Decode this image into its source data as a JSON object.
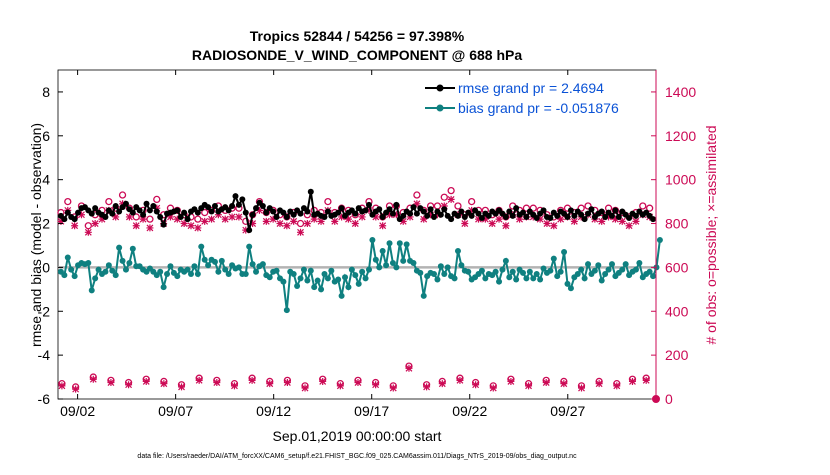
{
  "chart_data": {
    "type": "line",
    "title_lines": [
      "Tropics 52844 / 54256 = 97.398%",
      "RADIOSONDE_V_WIND_COMPONENT @ 688 hPa"
    ],
    "xlabel": "Sep.01,2019 00:00:00 start",
    "ylabel_left": "rmse and bias (model - observation)",
    "ylabel_right": "# of obs: o=possible; ×=assimilated",
    "footnote": "data file: /Users/raeder/DAI/ATM_forcXX/CAM6_setup/f.e21.FHIST_BGC.f09_025.CAM6assim.011/Diags_NTrS_2019-09/obs_diag_output.nc",
    "xlim": [
      1,
      31.5
    ],
    "ylim_left": [
      -6,
      9
    ],
    "ylim_right": [
      0,
      1500
    ],
    "x_ticks": [
      2,
      7,
      12,
      17,
      22,
      27
    ],
    "x_tick_labels": [
      "09/02",
      "09/07",
      "09/12",
      "09/17",
      "09/22",
      "09/27"
    ],
    "y_left_ticks": [
      -6,
      -4,
      -2,
      0,
      2,
      4,
      6,
      8
    ],
    "y_right_ticks": [
      0,
      200,
      400,
      600,
      800,
      1000,
      1200,
      1400
    ],
    "colors": {
      "rmse": "#000000",
      "bias": "#0f8080",
      "obs": "#cc0a55",
      "zero_line": "#b3b3b3",
      "legend_text": "#0a52d6",
      "right_axis": "#cc0a55"
    },
    "legend": [
      {
        "key": "rmse",
        "label": "rmse grand pr = 2.4694"
      },
      {
        "key": "bias",
        "label": "bias grand pr = -0.051876"
      }
    ],
    "series": [
      {
        "name": "rmse",
        "values": [
          2.35,
          2.2,
          2.5,
          2.3,
          2.2,
          2.5,
          2.7,
          2.75,
          2.6,
          2.45,
          2.7,
          2.5,
          2.4,
          2.3,
          2.6,
          2.45,
          2.8,
          2.55,
          2.75,
          2.9,
          2.65,
          2.5,
          2.75,
          2.6,
          2.4,
          2.9,
          2.6,
          2.8,
          2.55,
          2.3,
          1.95,
          2.45,
          2.5,
          2.55,
          2.6,
          2.3,
          2.5,
          2.2,
          2.55,
          2.65,
          2.5,
          2.7,
          2.85,
          2.75,
          2.55,
          2.8,
          2.55,
          2.65,
          2.75,
          2.6,
          2.8,
          3.25,
          2.85,
          3.1,
          2.5,
          1.7,
          2.4,
          2.7,
          2.95,
          2.8,
          2.5,
          2.7,
          2.55,
          2.3,
          2.6,
          2.5,
          2.3,
          2.55,
          2.4,
          2.6,
          2.45,
          2.7,
          2.55,
          3.45,
          2.4,
          2.45,
          2.35,
          2.3,
          2.55,
          2.35,
          2.4,
          2.5,
          2.7,
          2.35,
          2.5,
          2.6,
          2.45,
          2.7,
          2.55,
          2.6,
          2.85,
          2.4,
          2.55,
          2.65,
          2.3,
          2.5,
          2.65,
          2.45,
          2.85,
          2.2,
          2.35,
          2.55,
          2.45,
          2.75,
          2.45,
          2.7,
          2.55,
          2.35,
          2.65,
          2.3,
          2.55,
          2.4,
          2.65,
          2.35,
          2.2,
          2.45,
          2.35,
          2.55,
          2.3,
          2.5,
          2.35,
          2.6,
          2.45,
          2.25,
          2.45,
          2.35,
          2.55,
          2.45,
          2.6,
          2.45,
          2.3,
          2.55,
          2.35,
          2.7,
          2.4,
          2.5,
          2.3,
          2.55,
          2.4,
          2.25,
          2.45,
          2.6,
          2.3,
          2.25,
          2.5,
          2.35,
          2.55,
          2.45,
          2.3,
          2.6,
          2.35,
          2.55,
          2.4,
          2.2,
          2.45,
          2.65,
          2.3,
          2.45,
          2.55,
          2.3,
          2.5,
          2.35,
          2.6,
          2.3,
          2.55,
          2.4,
          2.25,
          2.45,
          2.35,
          2.55,
          2.4,
          2.5,
          2.35,
          2.2
        ]
      },
      {
        "name": "bias",
        "values": [
          -0.2,
          -0.35,
          0.45,
          -0.1,
          -0.4,
          0.1,
          0.2,
          0.15,
          0.2,
          -1.05,
          -0.5,
          -0.1,
          -0.3,
          -0.2,
          0.1,
          -0.15,
          -0.35,
          0.9,
          0.3,
          -0.1,
          0.2,
          0.85,
          0.05,
          0.05,
          -0.1,
          -0.2,
          -0.05,
          -0.2,
          -0.35,
          -0.2,
          -0.9,
          -0.3,
          0.05,
          -0.25,
          -0.4,
          -0.1,
          -0.2,
          -0.1,
          -0.3,
          0.05,
          -0.3,
          0.95,
          0.35,
          0.1,
          0.35,
          0.25,
          -0.2,
          0.3,
          -0.1,
          -0.3,
          0.1,
          -0.05,
          0.0,
          -0.3,
          -0.3,
          0.95,
          0.15,
          -0.2,
          0.05,
          0.15,
          -0.35,
          -0.45,
          -0.2,
          -0.15,
          -0.5,
          -0.65,
          -1.95,
          -0.2,
          -0.3,
          -0.85,
          -0.5,
          -0.1,
          -0.6,
          -0.15,
          -0.9,
          -0.6,
          -1.0,
          -0.3,
          -0.5,
          -0.15,
          -0.65,
          -0.55,
          -1.3,
          -0.45,
          -0.9,
          -0.1,
          -0.35,
          -0.75,
          -0.2,
          -0.5,
          -0.1,
          1.25,
          0.35,
          0.0,
          0.75,
          0.1,
          1.1,
          0.2,
          0.0,
          1.1,
          0.3,
          1.05,
          0.3,
          0.2,
          -0.15,
          -0.25,
          -1.3,
          -0.4,
          -0.25,
          -0.3,
          -0.55,
          0.05,
          -0.3,
          0.0,
          -0.4,
          -0.5,
          0.75,
          0.1,
          -0.15,
          -0.2,
          -0.55,
          -0.45,
          -0.3,
          -0.15,
          -0.5,
          -0.3,
          -0.35,
          -0.2,
          -0.65,
          -0.1,
          0.3,
          -0.45,
          -0.2,
          -0.55,
          -0.1,
          -0.25,
          -0.5,
          -0.2,
          -0.5,
          -0.3,
          -0.55,
          -0.05,
          -0.25,
          -0.15,
          0.4,
          -0.4,
          -0.2,
          0.7,
          -0.75,
          -0.95,
          -0.45,
          -0.3,
          -0.1,
          -0.5,
          0.15,
          -0.3,
          -0.15,
          0.1,
          -0.6,
          -0.3,
          -0.1,
          0.15,
          -0.4,
          -0.25,
          -0.1,
          0.15,
          -0.35,
          -0.2,
          -0.1,
          0.2,
          -0.45,
          -0.3,
          -0.2,
          -0.4,
          0.0,
          1.25
        ]
      },
      {
        "name": "obs_possible",
        "values": [
          850,
          820,
          900,
          810,
          830,
          840,
          880,
          870,
          790,
          800,
          840,
          920,
          860,
          830,
          900,
          880,
          870,
          920,
          930,
          890,
          870,
          950,
          830,
          880,
          860,
          840,
          820,
          890,
          910,
          860,
          840,
          830,
          870,
          860,
          860,
          800,
          840,
          820,
          830,
          860,
          820,
          830,
          850,
          840,
          860,
          930,
          880,
          880,
          860,
          840,
          870,
          950,
          870,
          880,
          810,
          830,
          840,
          860,
          900,
          890,
          850,
          840,
          860,
          820,
          840,
          820,
          830,
          860,
          850,
          840,
          800,
          830,
          840,
          860,
          860,
          820,
          850,
          860,
          900,
          860,
          850,
          840,
          870,
          820,
          860,
          830,
          840,
          890,
          870,
          880,
          900,
          860,
          870,
          860,
          830,
          840,
          880,
          860,
          880,
          880,
          850,
          930,
          870,
          920,
          930,
          880,
          860,
          920,
          880,
          860,
          880,
          850,
          920,
          880,
          950,
          870,
          880,
          860,
          840,
          850,
          900,
          880,
          860,
          880,
          860,
          850,
          840,
          890,
          860,
          840,
          830,
          860,
          880,
          870,
          860,
          830,
          870,
          860,
          870,
          880,
          860,
          820,
          840,
          880,
          830,
          840,
          860,
          880,
          870,
          890,
          850,
          830,
          870,
          860,
          880,
          900,
          860,
          880,
          850,
          830,
          870,
          880,
          860,
          870,
          850,
          860,
          830,
          870,
          850,
          840,
          880,
          850,
          870
        ]
      },
      {
        "name": "obs_assimilated",
        "values": [
          810,
          780,
          860,
          790,
          790,
          800,
          840,
          830,
          760,
          770,
          800,
          880,
          820,
          790,
          860,
          840,
          830,
          880,
          890,
          850,
          830,
          910,
          790,
          840,
          820,
          800,
          780,
          850,
          870,
          820,
          800,
          790,
          830,
          820,
          820,
          760,
          800,
          780,
          790,
          820,
          780,
          790,
          810,
          800,
          820,
          890,
          840,
          840,
          820,
          800,
          830,
          910,
          830,
          840,
          770,
          790,
          800,
          820,
          860,
          850,
          810,
          800,
          820,
          780,
          800,
          780,
          790,
          820,
          810,
          800,
          760,
          790,
          800,
          820,
          820,
          780,
          810,
          820,
          860,
          820,
          810,
          800,
          830,
          780,
          820,
          790,
          800,
          850,
          830,
          840,
          860,
          820,
          830,
          820,
          790,
          800,
          840,
          820,
          840,
          840,
          810,
          890,
          830,
          880,
          890,
          840,
          820,
          880,
          840,
          820,
          840,
          810,
          880,
          840,
          910,
          830,
          840,
          820,
          800,
          810,
          860,
          840,
          820,
          840,
          820,
          810,
          800,
          850,
          820,
          800,
          790,
          820,
          840,
          830,
          820,
          790,
          830,
          820,
          830,
          840,
          820,
          780,
          800,
          840,
          790,
          800,
          820,
          840,
          830,
          850,
          810,
          790,
          830,
          820,
          840,
          860,
          820,
          840,
          810,
          790,
          830,
          840,
          820,
          830,
          810,
          820,
          790,
          830,
          810,
          800,
          840,
          810,
          830
        ]
      },
      {
        "name": "obs_low_possible",
        "x": [
          1.2,
          1.9,
          2.8,
          3.7,
          4.6,
          5.5,
          6.4,
          7.3,
          8.2,
          9.1,
          10.0,
          10.9,
          11.8,
          12.7,
          13.6,
          14.5,
          15.4,
          16.3,
          17.2,
          18.1,
          18.9,
          19.8,
          20.6,
          21.5,
          22.3,
          23.2,
          24.1,
          25.0,
          25.9,
          26.8,
          27.7,
          28.6,
          29.5,
          30.3,
          31.0
        ],
        "values": [
          70,
          55,
          100,
          85,
          75,
          90,
          80,
          65,
          95,
          85,
          70,
          95,
          80,
          85,
          60,
          90,
          70,
          85,
          75,
          60,
          150,
          65,
          80,
          95,
          75,
          60,
          90,
          70,
          85,
          80,
          60,
          80,
          70,
          90,
          95
        ]
      },
      {
        "name": "obs_low_assimilated",
        "x": [
          1.2,
          1.9,
          2.8,
          3.7,
          4.6,
          5.5,
          6.4,
          7.3,
          8.2,
          9.1,
          10.0,
          10.9,
          11.8,
          12.7,
          13.6,
          14.5,
          15.4,
          16.3,
          17.2,
          18.1,
          18.9,
          19.8,
          20.6,
          21.5,
          22.3,
          23.2,
          24.1,
          25.0,
          25.9,
          26.8,
          27.7,
          28.6,
          29.5,
          30.3,
          31.0
        ],
        "values": [
          60,
          45,
          90,
          75,
          65,
          80,
          70,
          55,
          85,
          75,
          60,
          85,
          70,
          75,
          50,
          80,
          60,
          75,
          65,
          50,
          140,
          55,
          70,
          85,
          65,
          50,
          80,
          60,
          75,
          70,
          50,
          70,
          60,
          80,
          85
        ]
      }
    ],
    "last_point_right": 0
  }
}
